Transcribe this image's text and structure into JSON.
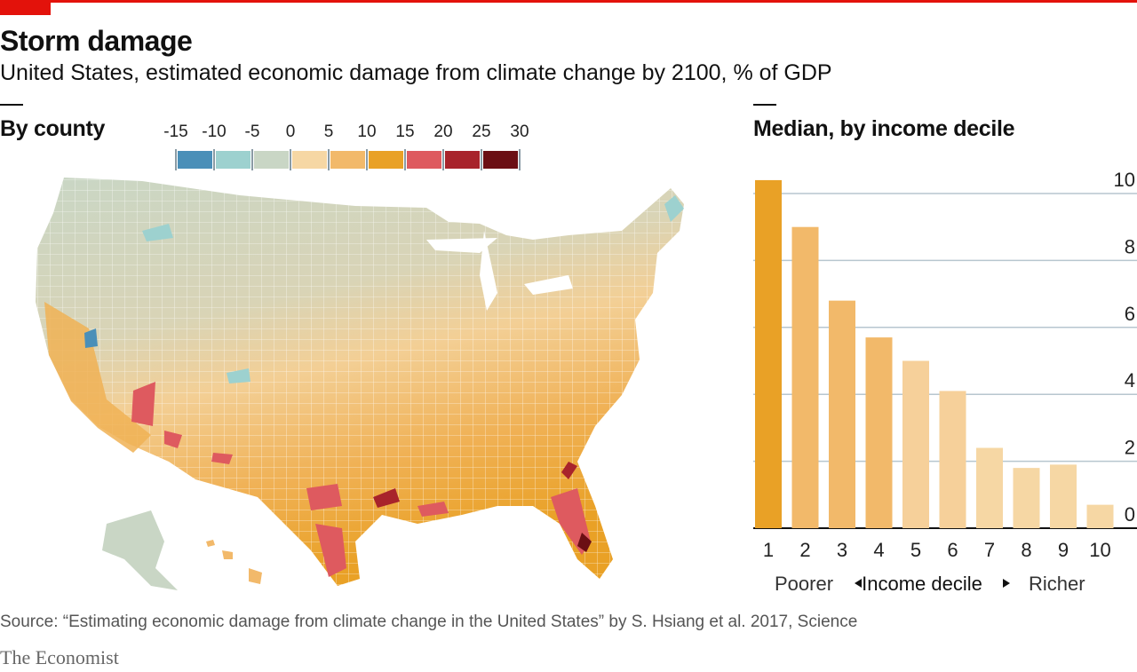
{
  "header": {
    "title": "Storm damage",
    "subtitle": "United States, estimated economic damage from climate change by 2100, % of GDP"
  },
  "map_panel": {
    "heading": "By county",
    "legend_ticks": [
      "-15",
      "-10",
      "-5",
      "0",
      "5",
      "10",
      "15",
      "20",
      "25",
      "30"
    ],
    "legend_colors": [
      "#4a8fb8",
      "#9dd1cf",
      "#c9d6c5",
      "#f6d7a4",
      "#f2b96a",
      "#e9a126",
      "#de5a5f",
      "#a8232b",
      "#6b0f14"
    ]
  },
  "chart_data": {
    "type": "bar",
    "title": "Median, by income decile",
    "categories": [
      "1",
      "2",
      "3",
      "4",
      "5",
      "6",
      "7",
      "8",
      "9",
      "10"
    ],
    "values": [
      10.4,
      9.0,
      6.8,
      5.7,
      5.0,
      4.1,
      2.4,
      1.8,
      1.9,
      0.7
    ],
    "colors": [
      "#e9a126",
      "#f2b96a",
      "#f2b96a",
      "#f2b96a",
      "#f6d09a",
      "#f6d09a",
      "#f6d7a4",
      "#f6d7a4",
      "#f6d7a4",
      "#f6d7a4"
    ],
    "ylim": [
      0,
      10
    ],
    "yticks": [
      0,
      2,
      4,
      6,
      8,
      10
    ],
    "grid": true,
    "xlabel_left": "Poorer",
    "xlabel_center": "Income decile",
    "xlabel_right": "Richer"
  },
  "footer": {
    "source": "Source: “Estimating economic damage from climate change in the United States” by S. Hsiang et al. 2017, Science",
    "brand": "The Economist"
  }
}
